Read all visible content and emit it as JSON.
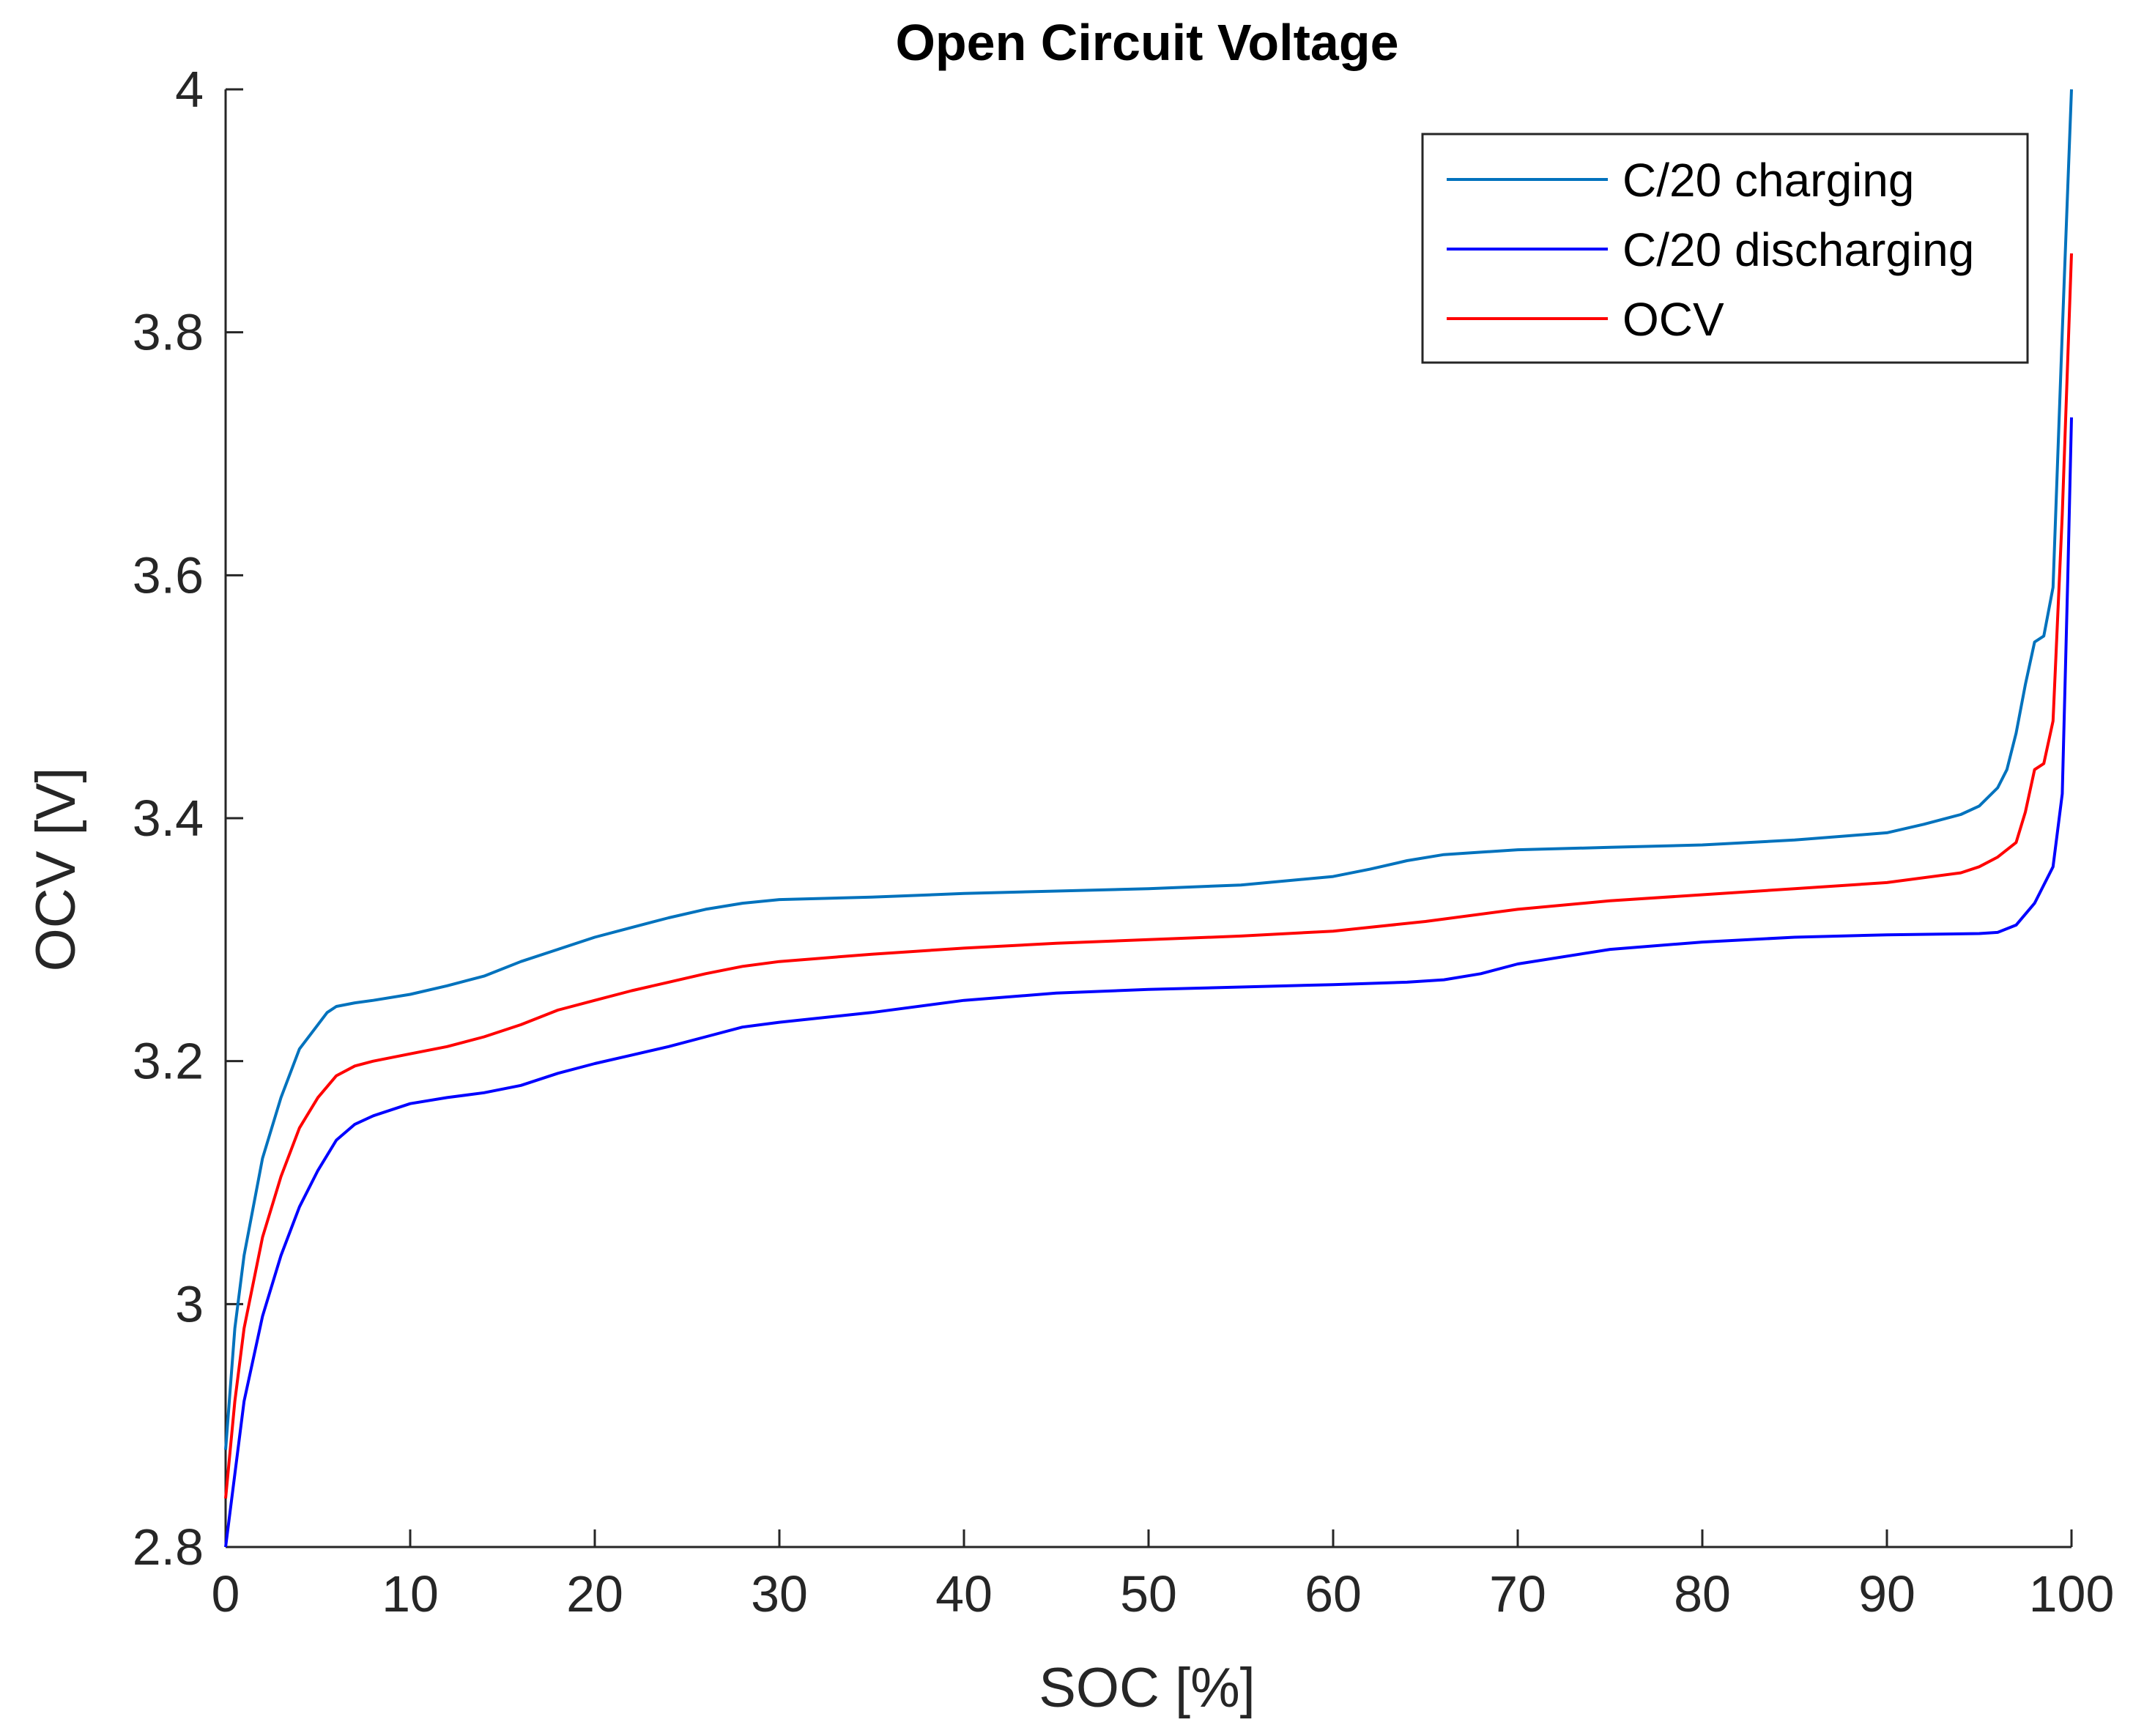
{
  "chart_data": {
    "type": "line",
    "title": "Open Circuit Voltage",
    "xlabel": "SOC [%]",
    "ylabel": "OCV [V]",
    "xlim": [
      0,
      100
    ],
    "ylim": [
      2.8,
      4.0
    ],
    "xticks": [
      0,
      10,
      20,
      30,
      40,
      50,
      60,
      70,
      80,
      90,
      100
    ],
    "xtick_labels": [
      "0",
      "10",
      "20",
      "30",
      "40",
      "50",
      "60",
      "70",
      "80",
      "90",
      "100"
    ],
    "yticks": [
      2.8,
      3.0,
      3.2,
      3.4,
      3.6,
      3.8,
      4.0
    ],
    "ytick_labels": [
      "2.8",
      "3",
      "3.2",
      "3.4",
      "3.6",
      "3.8",
      "4"
    ],
    "grid": false,
    "legend_position": "top-right",
    "series": [
      {
        "name": "C/20 charging",
        "color": "#0072bd",
        "x": [
          0,
          0.5,
          1,
          2,
          3,
          4,
          5,
          5.5,
          6,
          7,
          8,
          10,
          12,
          14,
          16,
          18,
          20,
          22,
          24,
          26,
          28,
          30,
          35,
          40,
          45,
          50,
          55,
          60,
          62,
          64,
          66,
          68,
          70,
          75,
          80,
          85,
          90,
          92,
          94,
          95,
          96,
          96.5,
          97,
          97.5,
          98,
          98.5,
          99,
          99.5,
          100
        ],
        "y": [
          2.88,
          2.98,
          3.04,
          3.12,
          3.17,
          3.21,
          3.23,
          3.24,
          3.245,
          3.248,
          3.25,
          3.255,
          3.262,
          3.27,
          3.282,
          3.292,
          3.302,
          3.31,
          3.318,
          3.325,
          3.33,
          3.333,
          3.335,
          3.338,
          3.34,
          3.342,
          3.345,
          3.352,
          3.358,
          3.365,
          3.37,
          3.372,
          3.374,
          3.376,
          3.378,
          3.382,
          3.388,
          3.395,
          3.403,
          3.41,
          3.425,
          3.44,
          3.47,
          3.51,
          3.545,
          3.55,
          3.59,
          3.8,
          4.0
        ]
      },
      {
        "name": "C/20 discharging",
        "color": "#0000ff",
        "x": [
          0,
          0.5,
          1,
          2,
          3,
          4,
          5,
          6,
          7,
          8,
          10,
          12,
          14,
          16,
          18,
          20,
          22,
          24,
          26,
          28,
          30,
          35,
          40,
          45,
          50,
          55,
          60,
          64,
          66,
          68,
          70,
          75,
          80,
          85,
          90,
          95,
          96,
          97,
          98,
          99,
          99.5,
          99.8,
          100
        ],
        "y": [
          2.8,
          2.86,
          2.92,
          2.99,
          3.04,
          3.08,
          3.11,
          3.135,
          3.148,
          3.155,
          3.165,
          3.17,
          3.174,
          3.18,
          3.19,
          3.198,
          3.205,
          3.212,
          3.22,
          3.228,
          3.232,
          3.24,
          3.25,
          3.256,
          3.259,
          3.261,
          3.263,
          3.265,
          3.267,
          3.272,
          3.28,
          3.292,
          3.298,
          3.302,
          3.304,
          3.305,
          3.306,
          3.312,
          3.33,
          3.36,
          3.42,
          3.6,
          3.73
        ]
      },
      {
        "name": "OCV",
        "color": "#ff0000",
        "x": [
          0,
          0.5,
          1,
          2,
          3,
          4,
          5,
          6,
          7,
          8,
          10,
          12,
          14,
          16,
          18,
          20,
          22,
          24,
          26,
          28,
          30,
          35,
          40,
          45,
          50,
          55,
          60,
          65,
          70,
          75,
          80,
          85,
          90,
          94,
          95,
          96,
          97,
          97.5,
          98,
          98.5,
          99,
          99.5,
          100
        ],
        "y": [
          2.84,
          2.92,
          2.98,
          3.055,
          3.105,
          3.145,
          3.17,
          3.188,
          3.196,
          3.2,
          3.206,
          3.212,
          3.22,
          3.23,
          3.242,
          3.25,
          3.258,
          3.265,
          3.272,
          3.278,
          3.282,
          3.288,
          3.293,
          3.297,
          3.3,
          3.303,
          3.307,
          3.315,
          3.325,
          3.332,
          3.337,
          3.342,
          3.347,
          3.355,
          3.36,
          3.368,
          3.38,
          3.405,
          3.44,
          3.445,
          3.48,
          3.65,
          3.865
        ]
      }
    ]
  }
}
